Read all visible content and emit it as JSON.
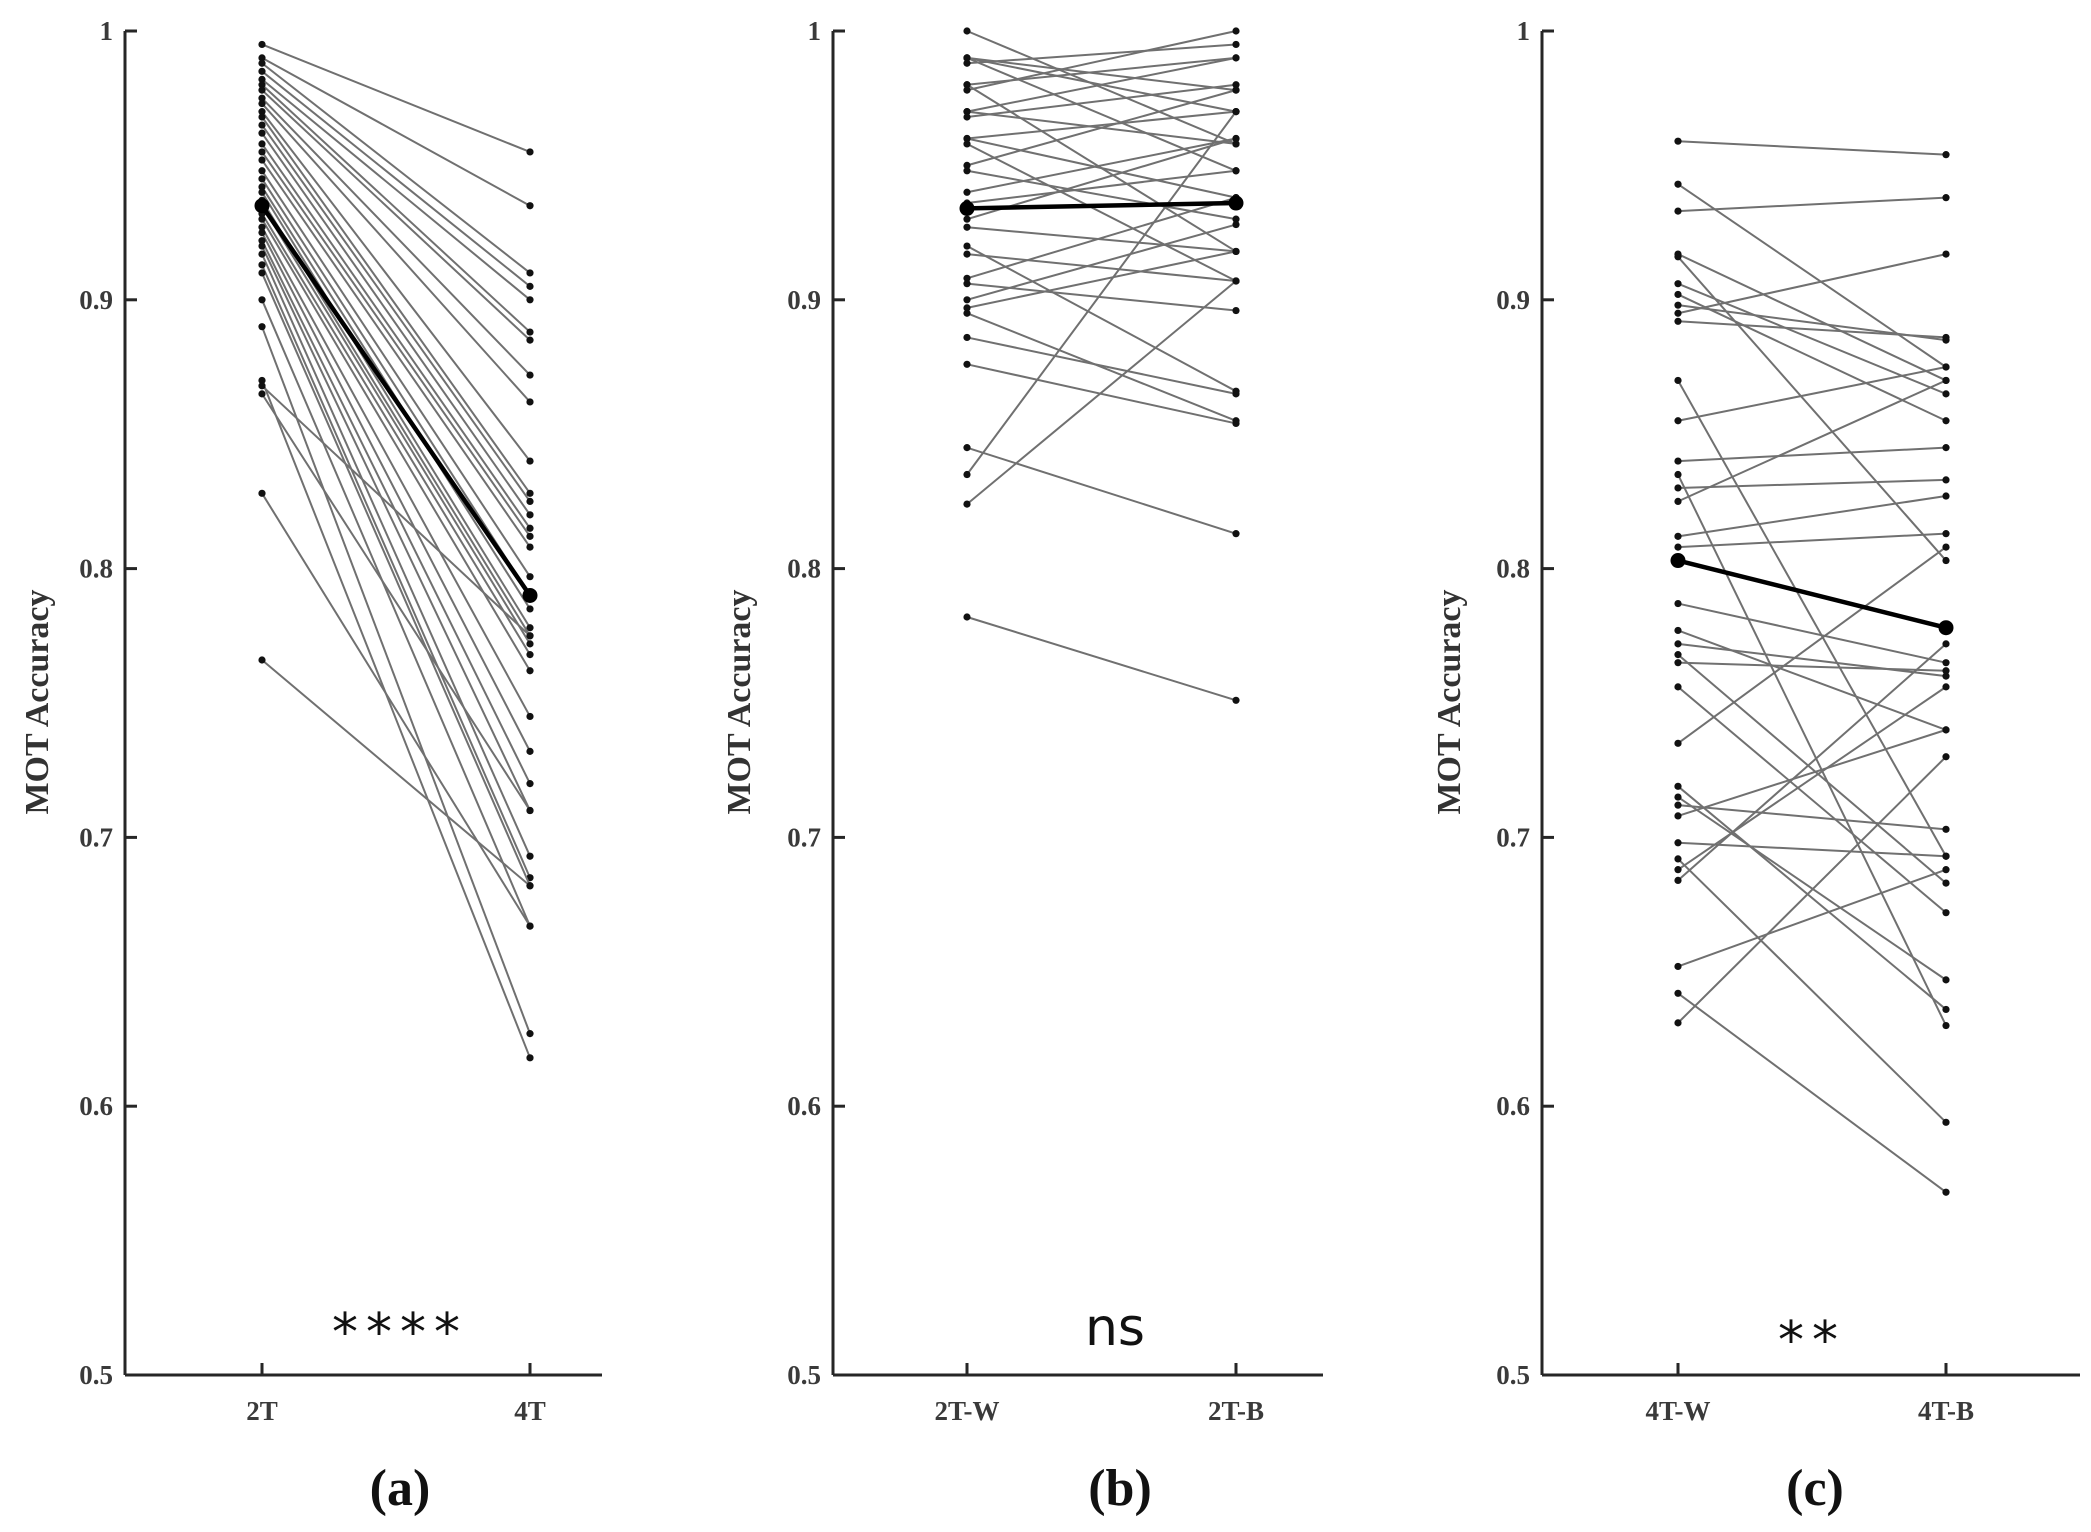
{
  "chart_data": [
    {
      "type": "line",
      "panel_label": "(a)",
      "significance": "****",
      "ylabel": "MOT Accuracy",
      "ylim": [
        0.5,
        1
      ],
      "yticks": [
        "0.5",
        "0.6",
        "0.7",
        "0.8",
        "0.9",
        "1"
      ],
      "categories": [
        "2T",
        "4T"
      ],
      "mean": [
        0.935,
        0.79
      ],
      "series": [
        [
          0.995,
          0.955
        ],
        [
          0.99,
          0.935
        ],
        [
          0.988,
          0.91
        ],
        [
          0.985,
          0.905
        ],
        [
          0.982,
          0.9
        ],
        [
          0.98,
          0.888
        ],
        [
          0.978,
          0.885
        ],
        [
          0.975,
          0.872
        ],
        [
          0.973,
          0.862
        ],
        [
          0.97,
          0.84
        ],
        [
          0.968,
          0.828
        ],
        [
          0.965,
          0.825
        ],
        [
          0.962,
          0.82
        ],
        [
          0.958,
          0.815
        ],
        [
          0.955,
          0.812
        ],
        [
          0.952,
          0.808
        ],
        [
          0.948,
          0.797
        ],
        [
          0.945,
          0.79
        ],
        [
          0.942,
          0.785
        ],
        [
          0.94,
          0.778
        ],
        [
          0.937,
          0.775
        ],
        [
          0.935,
          0.772
        ],
        [
          0.932,
          0.768
        ],
        [
          0.93,
          0.762
        ],
        [
          0.927,
          0.745
        ],
        [
          0.925,
          0.732
        ],
        [
          0.922,
          0.72
        ],
        [
          0.92,
          0.71
        ],
        [
          0.917,
          0.693
        ],
        [
          0.913,
          0.685
        ],
        [
          0.91,
          0.682
        ],
        [
          0.9,
          0.667
        ],
        [
          0.89,
          0.627
        ],
        [
          0.87,
          0.618
        ],
        [
          0.868,
          0.775
        ],
        [
          0.865,
          0.71
        ],
        [
          0.828,
          0.667
        ],
        [
          0.766,
          0.682
        ]
      ]
    },
    {
      "type": "line",
      "panel_label": "(b)",
      "significance": "ns",
      "ylabel": "MOT Accuracy",
      "ylim": [
        0.5,
        1
      ],
      "yticks": [
        "0.5",
        "0.6",
        "0.7",
        "0.8",
        "0.9",
        "1"
      ],
      "categories": [
        "2T-W",
        "2T-B"
      ],
      "mean": [
        0.934,
        0.936
      ],
      "series": [
        [
          1.0,
          0.958
        ],
        [
          0.99,
          0.978
        ],
        [
          0.99,
          0.948
        ],
        [
          0.99,
          0.97
        ],
        [
          0.988,
          0.995
        ],
        [
          0.98,
          0.99
        ],
        [
          0.98,
          0.918
        ],
        [
          0.978,
          1.0
        ],
        [
          0.97,
          0.99
        ],
        [
          0.97,
          0.958
        ],
        [
          0.968,
          0.98
        ],
        [
          0.96,
          0.938
        ],
        [
          0.96,
          0.97
        ],
        [
          0.958,
          0.907
        ],
        [
          0.95,
          0.978
        ],
        [
          0.948,
          0.93
        ],
        [
          0.94,
          0.96
        ],
        [
          0.936,
          0.948
        ],
        [
          0.93,
          0.96
        ],
        [
          0.927,
          0.918
        ],
        [
          0.92,
          0.866
        ],
        [
          0.917,
          0.907
        ],
        [
          0.908,
          0.938
        ],
        [
          0.906,
          0.896
        ],
        [
          0.9,
          0.928
        ],
        [
          0.897,
          0.918
        ],
        [
          0.895,
          0.855
        ],
        [
          0.886,
          0.865
        ],
        [
          0.876,
          0.854
        ],
        [
          0.845,
          0.813
        ],
        [
          0.835,
          0.97
        ],
        [
          0.824,
          0.907
        ],
        [
          0.782,
          0.751
        ]
      ]
    },
    {
      "type": "line",
      "panel_label": "(c)",
      "significance": "**",
      "ylabel": "MOT Accuracy",
      "ylim": [
        0.5,
        1
      ],
      "yticks": [
        "0.5",
        "0.6",
        "0.7",
        "0.8",
        "0.9",
        "1"
      ],
      "categories": [
        "4T-W",
        "4T-B"
      ],
      "mean": [
        0.803,
        0.778
      ],
      "series": [
        [
          0.959,
          0.954
        ],
        [
          0.943,
          0.875
        ],
        [
          0.933,
          0.938
        ],
        [
          0.917,
          0.87
        ],
        [
          0.916,
          0.803
        ],
        [
          0.906,
          0.865
        ],
        [
          0.902,
          0.855
        ],
        [
          0.898,
          0.885
        ],
        [
          0.895,
          0.917
        ],
        [
          0.892,
          0.886
        ],
        [
          0.87,
          0.693
        ],
        [
          0.855,
          0.875
        ],
        [
          0.84,
          0.845
        ],
        [
          0.835,
          0.63
        ],
        [
          0.83,
          0.833
        ],
        [
          0.825,
          0.87
        ],
        [
          0.812,
          0.827
        ],
        [
          0.808,
          0.813
        ],
        [
          0.787,
          0.765
        ],
        [
          0.777,
          0.74
        ],
        [
          0.772,
          0.76
        ],
        [
          0.768,
          0.683
        ],
        [
          0.765,
          0.762
        ],
        [
          0.756,
          0.672
        ],
        [
          0.735,
          0.808
        ],
        [
          0.719,
          0.636
        ],
        [
          0.715,
          0.647
        ],
        [
          0.712,
          0.703
        ],
        [
          0.708,
          0.74
        ],
        [
          0.698,
          0.693
        ],
        [
          0.692,
          0.594
        ],
        [
          0.688,
          0.756
        ],
        [
          0.684,
          0.772
        ],
        [
          0.652,
          0.688
        ],
        [
          0.642,
          0.568
        ],
        [
          0.631,
          0.73
        ]
      ]
    }
  ]
}
